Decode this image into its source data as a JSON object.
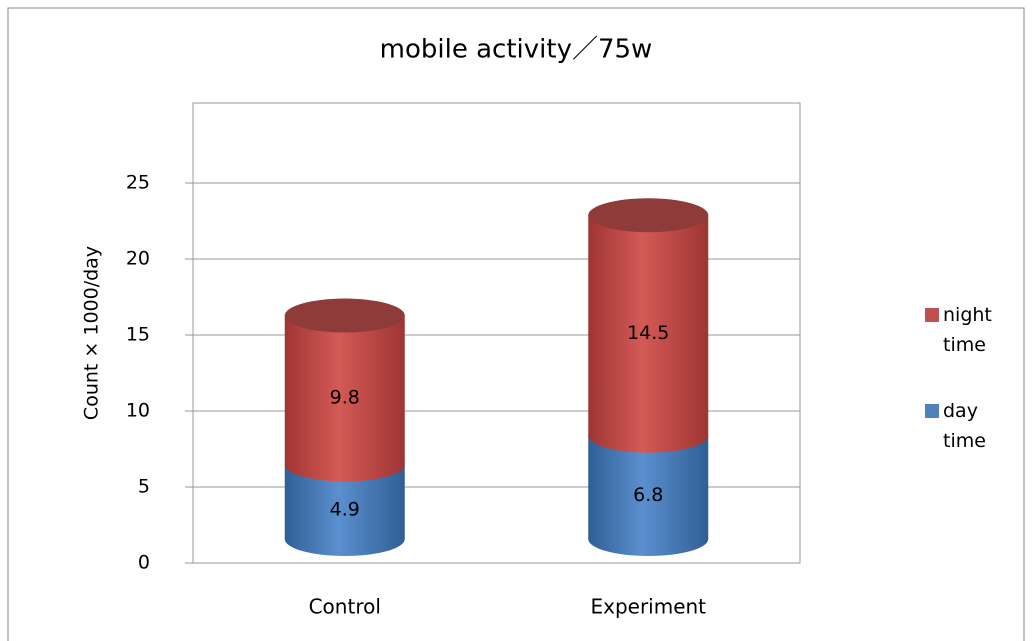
{
  "chart_data": {
    "type": "bar",
    "title": "mobile activity／75w",
    "y_label": "Count × 1000/day",
    "categories": [
      "Control",
      "Experiment"
    ],
    "series": [
      {
        "name": "day time",
        "color": "#4f81bd",
        "values": [
          4.9,
          6.8
        ]
      },
      {
        "name": "night time",
        "color": "#c0504d",
        "values": [
          9.8,
          14.5
        ]
      }
    ],
    "ylim": [
      0,
      30
    ],
    "yticks": [
      0,
      5,
      10,
      15,
      20,
      25
    ],
    "grid": true,
    "stacked": true,
    "legend": "right"
  }
}
